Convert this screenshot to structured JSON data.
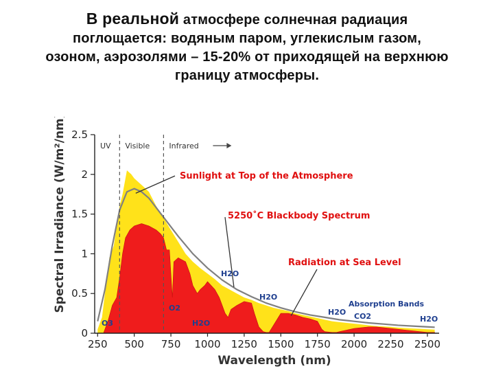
{
  "heading": {
    "line1_part1": "В реальной",
    "line1_part2": "атмосфере солнечная радиация",
    "line2": "поглощается: водяным паром, углекислым газом,",
    "line3": "озоном, аэрозолями – 15-20% от приходящей на верхнюю",
    "line4": "границу атмосферы."
  },
  "chart_data": {
    "type": "area",
    "title": "",
    "xlabel": "Wavelength (nm)",
    "ylabel": "Spectral Irradiance (W/m²/nm)",
    "xlim": [
      230,
      2580
    ],
    "ylim": [
      0,
      2.5
    ],
    "x_ticks": [
      "250",
      "500",
      "750",
      "1000",
      "1250",
      "1500",
      "1750",
      "2000",
      "2250",
      "2500"
    ],
    "y_ticks": [
      "0",
      "0.5",
      "1",
      "1.5",
      "2",
      "2.5"
    ],
    "regions": [
      {
        "label": "UV",
        "from": 230,
        "to": 400
      },
      {
        "label": "Visible",
        "from": 400,
        "to": 700
      },
      {
        "label": "Infrared",
        "from": 700,
        "to": 2580
      }
    ],
    "region_boundaries": [
      400,
      700
    ],
    "series": [
      {
        "name": "Sunlight at Top of the Atmosphere",
        "color": "#ffe21a",
        "x": [
          250,
          280,
          300,
          330,
          360,
          400,
          420,
          450,
          480,
          500,
          530,
          560,
          600,
          650,
          700,
          750,
          800,
          850,
          900,
          950,
          1000,
          1050,
          1100,
          1150,
          1200,
          1250,
          1300,
          1350,
          1400,
          1450,
          1500,
          1550,
          1600,
          1650,
          1700,
          1750,
          1800,
          1850,
          1900,
          1950,
          2000,
          2050,
          2100,
          2150,
          2200,
          2250,
          2300,
          2350,
          2400,
          2450,
          2500,
          2550
        ],
        "values": [
          0.05,
          0.2,
          0.5,
          0.95,
          1.1,
          1.6,
          1.75,
          2.05,
          2.0,
          1.95,
          1.9,
          1.85,
          1.78,
          1.6,
          1.45,
          1.3,
          1.15,
          1.0,
          0.9,
          0.82,
          0.75,
          0.68,
          0.6,
          0.55,
          0.5,
          0.45,
          0.42,
          0.38,
          0.35,
          0.32,
          0.3,
          0.28,
          0.25,
          0.23,
          0.21,
          0.19,
          0.17,
          0.15,
          0.14,
          0.13,
          0.12,
          0.11,
          0.1,
          0.09,
          0.085,
          0.08,
          0.07,
          0.065,
          0.06,
          0.055,
          0.05,
          0.045
        ]
      },
      {
        "name": "5250°C Blackbody Spectrum",
        "color": "#808080",
        "x": [
          250,
          300,
          350,
          400,
          450,
          500,
          550,
          600,
          650,
          700,
          800,
          900,
          1000,
          1100,
          1200,
          1300,
          1400,
          1500,
          1600,
          1700,
          1800,
          1900,
          2000,
          2100,
          2200,
          2300,
          2400,
          2500,
          2550
        ],
        "values": [
          0.15,
          0.55,
          1.1,
          1.55,
          1.78,
          1.82,
          1.78,
          1.7,
          1.58,
          1.46,
          1.22,
          1.0,
          0.82,
          0.67,
          0.55,
          0.46,
          0.38,
          0.32,
          0.27,
          0.23,
          0.2,
          0.17,
          0.15,
          0.13,
          0.115,
          0.1,
          0.09,
          0.08,
          0.075
        ]
      },
      {
        "name": "Radiation at Sea Level",
        "color": "#ef1c1c",
        "x": [
          250,
          290,
          300,
          320,
          350,
          380,
          400,
          420,
          440,
          470,
          500,
          550,
          600,
          650,
          680,
          700,
          720,
          740,
          760,
          770,
          800,
          850,
          880,
          900,
          930,
          950,
          980,
          1000,
          1050,
          1080,
          1100,
          1120,
          1140,
          1160,
          1200,
          1250,
          1300,
          1320,
          1350,
          1380,
          1400,
          1420,
          1450,
          1500,
          1550,
          1600,
          1650,
          1700,
          1750,
          1780,
          1800,
          1850,
          1880,
          1900,
          1950,
          2000,
          2050,
          2100,
          2150,
          2200,
          2250,
          2300,
          2350,
          2400,
          2450,
          2500,
          2550
        ],
        "values": [
          0,
          0,
          0.05,
          0.15,
          0.35,
          0.45,
          0.7,
          1.0,
          1.2,
          1.3,
          1.35,
          1.38,
          1.35,
          1.3,
          1.25,
          1.2,
          1.05,
          1.05,
          0.45,
          0.9,
          0.95,
          0.9,
          0.75,
          0.6,
          0.5,
          0.55,
          0.6,
          0.65,
          0.55,
          0.45,
          0.35,
          0.25,
          0.2,
          0.3,
          0.35,
          0.4,
          0.38,
          0.25,
          0.08,
          0.02,
          0.01,
          0.01,
          0.1,
          0.25,
          0.25,
          0.23,
          0.2,
          0.18,
          0.15,
          0.05,
          0.02,
          0.01,
          0.01,
          0.02,
          0.04,
          0.06,
          0.07,
          0.08,
          0.08,
          0.07,
          0.06,
          0.05,
          0.04,
          0.03,
          0.02,
          0.01,
          0.01
        ]
      }
    ],
    "callouts": [
      {
        "text": "Sunlight at Top of the Atmosphere",
        "series": 0
      },
      {
        "text": "5250˚C Blackbody Spectrum",
        "series": 1
      },
      {
        "text": "Radiation at Sea Level",
        "series": 2
      }
    ],
    "absorption_title": "Absorption Bands",
    "absorption_bands": [
      {
        "label": "O3",
        "x": 270
      },
      {
        "label": "O2",
        "x": 760
      },
      {
        "label": "H2O",
        "x": 1000
      },
      {
        "label": "H2O",
        "x": 1100
      },
      {
        "label": "H2O",
        "x": 1380
      },
      {
        "label": "H2O",
        "x": 1870
      },
      {
        "label": "CO2",
        "x": 2030
      },
      {
        "label": "H2O",
        "x": 2600
      }
    ],
    "grid": false
  }
}
